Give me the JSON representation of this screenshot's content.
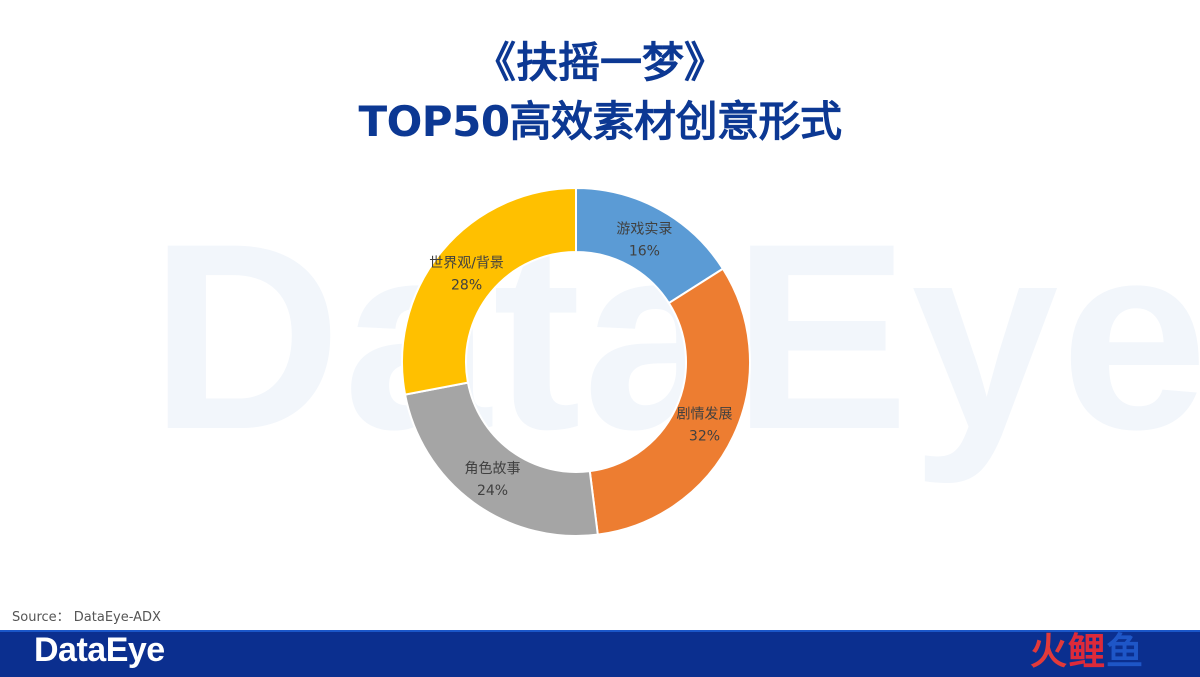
{
  "watermark": "DataEye",
  "header": {
    "title_line1": "《扶摇一梦》",
    "title_line2": "TOP50高效素材创意形式"
  },
  "chart_data": {
    "type": "pie",
    "donut": true,
    "categories": [
      "游戏实录",
      "剧情发展",
      "角色故事",
      "世界观/背景"
    ],
    "values": [
      16,
      32,
      24,
      28
    ],
    "value_labels": [
      "16%",
      "32%",
      "24%",
      "28%"
    ],
    "colors": [
      "#5b9bd5",
      "#ed7d31",
      "#a5a5a5",
      "#ffc000"
    ],
    "start": "top, clockwise",
    "legend": "none"
  },
  "source": "Source：  DataEye-ADX",
  "footer": {
    "logo": "DataEye",
    "brand": [
      "火",
      "鲤",
      "鱼"
    ],
    "bar_color": "#0b2f8f"
  }
}
